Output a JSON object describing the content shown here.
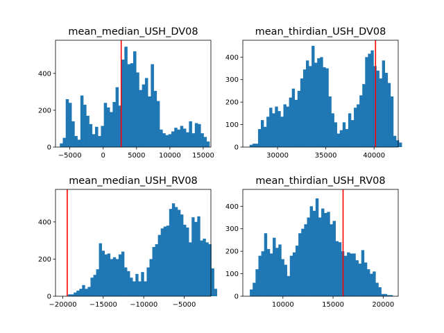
{
  "chart_data": [
    {
      "type": "bar",
      "subtype": "histogram",
      "title": "mean_median_USH_DV08",
      "color": "#1f77b4",
      "marker_color": "#ff0000",
      "marker_x": 2700,
      "xlim": [
        -7150,
        16150
      ],
      "ylim": [
        0,
        580
      ],
      "xticks": [
        -5000,
        0,
        5000,
        10000,
        15000
      ],
      "xtick_labels": [
        "−5000",
        "0",
        "5000",
        "10000",
        "15000"
      ],
      "yticks": [
        0,
        200,
        400
      ],
      "ytick_labels": [
        "0",
        "200",
        "400"
      ],
      "bin_start": -6500,
      "bin_width": 440,
      "values": [
        20,
        50,
        260,
        240,
        140,
        60,
        40,
        280,
        230,
        170,
        125,
        70,
        110,
        60,
        115,
        240,
        215,
        190,
        245,
        325,
        225,
        475,
        545,
        450,
        455,
        520,
        405,
        310,
        340,
        375,
        275,
        450,
        305,
        250,
        95,
        75,
        65,
        70,
        85,
        105,
        95,
        115,
        100,
        80,
        140,
        75,
        130,
        125,
        75,
        55,
        30
      ]
    },
    {
      "type": "bar",
      "subtype": "histogram",
      "title": "mean_thirdian_USH_DV08",
      "color": "#1f77b4",
      "marker_color": "#ff0000",
      "marker_x": 40150,
      "xlim": [
        26400,
        42500
      ],
      "ylim": [
        0,
        475
      ],
      "xticks": [
        30000,
        35000,
        40000
      ],
      "xtick_labels": [
        "30000",
        "35000",
        "40000"
      ],
      "yticks": [
        0,
        100,
        200,
        300,
        400
      ],
      "ytick_labels": [
        "0",
        "100",
        "200",
        "300",
        "400"
      ],
      "bin_start": 27100,
      "bin_width": 292,
      "values": [
        10,
        15,
        15,
        80,
        120,
        90,
        135,
        175,
        150,
        180,
        160,
        135,
        190,
        180,
        220,
        260,
        210,
        250,
        305,
        345,
        385,
        360,
        450,
        375,
        395,
        400,
        355,
        350,
        225,
        150,
        110,
        60,
        75,
        110,
        80,
        150,
        120,
        175,
        190,
        230,
        280,
        400,
        415,
        430,
        360,
        340,
        305,
        385,
        330,
        285,
        225,
        50,
        30,
        20
      ]
    },
    {
      "type": "bar",
      "subtype": "histogram",
      "title": "mean_median_USH_RV08",
      "color": "#1f77b4",
      "marker_color": "#ff0000",
      "marker_x": -19450,
      "xlim": [
        -20900,
        -1700
      ],
      "ylim": [
        0,
        575
      ],
      "xticks": [
        -20000,
        -15000,
        -10000,
        -5000
      ],
      "xtick_labels": [
        "−20000",
        "−15000",
        "−10000",
        "−5000"
      ],
      "yticks": [
        0,
        200,
        400
      ],
      "ytick_labels": [
        "0",
        "200",
        "400"
      ],
      "bin_start": -19350,
      "bin_width": 347,
      "values": [
        10,
        10,
        20,
        30,
        40,
        60,
        40,
        50,
        100,
        115,
        145,
        285,
        245,
        225,
        230,
        200,
        210,
        200,
        225,
        240,
        155,
        135,
        100,
        80,
        120,
        80,
        130,
        80,
        155,
        200,
        265,
        280,
        330,
        365,
        375,
        380,
        470,
        500,
        480,
        465,
        440,
        385,
        370,
        290,
        425,
        400,
        430,
        300,
        310,
        290,
        280,
        150,
        40
      ]
    },
    {
      "type": "bar",
      "subtype": "histogram",
      "title": "mean_thirdian_USH_RV08",
      "color": "#1f77b4",
      "marker_color": "#ff0000",
      "marker_x": 16000,
      "xlim": [
        6000,
        21500
      ],
      "ylim": [
        0,
        475
      ],
      "xticks": [
        10000,
        15000,
        20000
      ],
      "xtick_labels": [
        "10000",
        "15000",
        "20000"
      ],
      "yticks": [
        0,
        100,
        200,
        300,
        400
      ],
      "ytick_labels": [
        "0",
        "100",
        "200",
        "300",
        "400"
      ],
      "bin_start": 6700,
      "bin_width": 285,
      "values": [
        30,
        60,
        120,
        180,
        200,
        280,
        210,
        190,
        260,
        215,
        230,
        165,
        140,
        90,
        180,
        195,
        225,
        280,
        300,
        320,
        350,
        400,
        380,
        435,
        350,
        390,
        370,
        375,
        320,
        335,
        245,
        240,
        200,
        180,
        195,
        190,
        190,
        160,
        145,
        205,
        150,
        120,
        100,
        110,
        60,
        40,
        10,
        10,
        5,
        5
      ]
    }
  ]
}
